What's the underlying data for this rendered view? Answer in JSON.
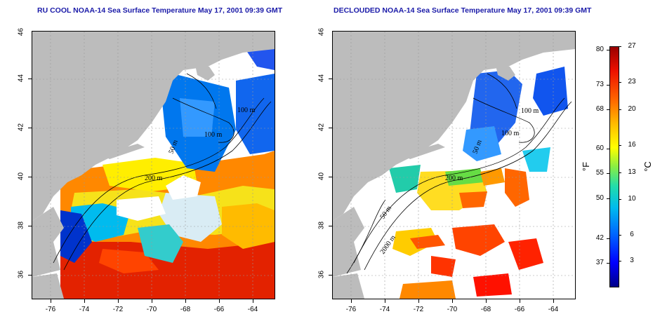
{
  "titles": {
    "left": "RU COOL NOAA-14 Sea Surface Temperature May 17, 2001 09:39 GMT",
    "right": "DECLOUDED NOAA-14 Sea Surface Temperature May 17, 2001 09:39 GMT"
  },
  "map_axes": {
    "lat_ticks": [
      "46",
      "44",
      "42",
      "40",
      "38",
      "36"
    ],
    "lon_ticks": [
      "-76",
      "-74",
      "-72",
      "-70",
      "-68",
      "-66",
      "-64"
    ]
  },
  "map_labels": {
    "left": [
      "200 m",
      "100 m",
      "50 m",
      "100 m"
    ],
    "right": [
      "200 m",
      "50 m",
      "2000 m",
      "100 m",
      "50 m",
      "100 m"
    ]
  },
  "colorbar": {
    "fahrenheit_label": "°F",
    "celsius_label": "°C",
    "fahrenheit_ticks": [
      "80",
      "73",
      "68",
      "60",
      "55",
      "50",
      "42",
      "37"
    ],
    "celsius_ticks": [
      "27",
      "23",
      "20",
      "16",
      "13",
      "10",
      "6",
      "3"
    ],
    "colors": [
      "#000088",
      "#0000ff",
      "#0066ff",
      "#00bbee",
      "#88ee44",
      "#ffff00",
      "#ffbb00",
      "#ff6600",
      "#ee1100",
      "#990000"
    ]
  },
  "colors": {
    "land": "#bcbcbc",
    "cloud": "#ffffff",
    "title": "#1a1aa8"
  }
}
